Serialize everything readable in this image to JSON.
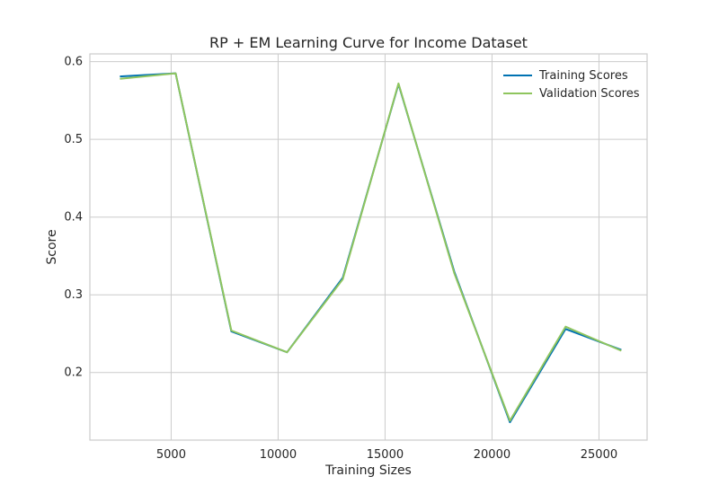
{
  "chart_data": {
    "type": "line",
    "title": "RP + EM Learning Curve for Income Dataset",
    "xlabel": "Training Sizes",
    "ylabel": "Score",
    "xlim": [
      1200,
      27250
    ],
    "ylim": [
      0.113,
      0.61
    ],
    "xticks": [
      5000,
      10000,
      15000,
      20000,
      25000
    ],
    "yticks": [
      0.2,
      0.3,
      0.4,
      0.5,
      0.6
    ],
    "x": [
      2604,
      5209,
      7814,
      10418,
      13023,
      15628,
      18232,
      20837,
      23441,
      26046
    ],
    "series": [
      {
        "name": "Training Scores",
        "color": "#0072B2",
        "values": [
          0.581,
          0.585,
          0.253,
          0.226,
          0.322,
          0.571,
          0.33,
          0.136,
          0.256,
          0.229
        ]
      },
      {
        "name": "Validation Scores",
        "color": "#8fc55e",
        "values": [
          0.578,
          0.585,
          0.254,
          0.226,
          0.32,
          0.572,
          0.328,
          0.138,
          0.259,
          0.228
        ]
      }
    ],
    "grid": true,
    "legend": "top-right",
    "colors": {
      "grid": "#cccccc",
      "frame": "#cccccc",
      "text": "#262626"
    }
  }
}
